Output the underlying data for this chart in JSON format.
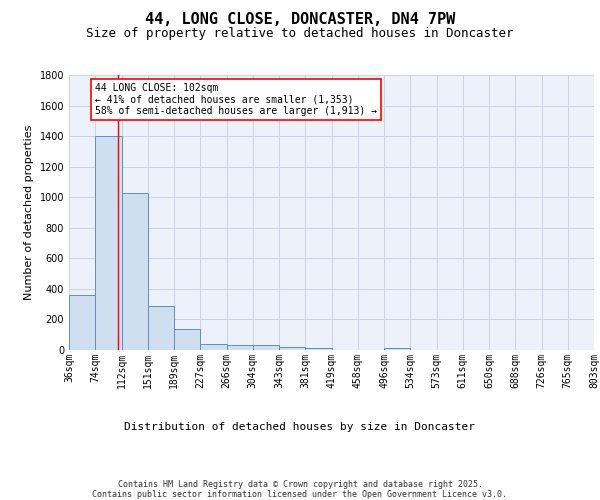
{
  "title": "44, LONG CLOSE, DONCASTER, DN4 7PW",
  "subtitle": "Size of property relative to detached houses in Doncaster",
  "xlabel": "Distribution of detached houses by size in Doncaster",
  "ylabel": "Number of detached properties",
  "bar_values": [
    360,
    1400,
    1030,
    290,
    135,
    40,
    35,
    30,
    20,
    15,
    0,
    0,
    15,
    0,
    0,
    0,
    0,
    0,
    0
  ],
  "bin_labels": [
    "36sqm",
    "74sqm",
    "112sqm",
    "151sqm",
    "189sqm",
    "227sqm",
    "266sqm",
    "304sqm",
    "343sqm",
    "381sqm",
    "419sqm",
    "458sqm",
    "496sqm",
    "534sqm",
    "573sqm",
    "611sqm",
    "650sqm",
    "688sqm",
    "726sqm",
    "765sqm",
    "803sqm"
  ],
  "bar_color": "#cfdff0",
  "bar_edge_color": "#5b8fc9",
  "grid_color": "#c8d4e8",
  "bg_color": "#edf1fa",
  "red_line_x": 1.88,
  "annotation_text": "44 LONG CLOSE: 102sqm\n← 41% of detached houses are smaller (1,353)\n58% of semi-detached houses are larger (1,913) →",
  "annotation_box_color": "white",
  "annotation_box_edge_color": "red",
  "ylim": [
    0,
    1800
  ],
  "yticks": [
    0,
    200,
    400,
    600,
    800,
    1000,
    1200,
    1400,
    1600,
    1800
  ],
  "footer_line1": "Contains HM Land Registry data © Crown copyright and database right 2025.",
  "footer_line2": "Contains public sector information licensed under the Open Government Licence v3.0.",
  "title_fontsize": 11,
  "subtitle_fontsize": 9,
  "tick_fontsize": 7,
  "xlabel_fontsize": 8,
  "ylabel_fontsize": 8,
  "annotation_fontsize": 7,
  "footer_fontsize": 6
}
